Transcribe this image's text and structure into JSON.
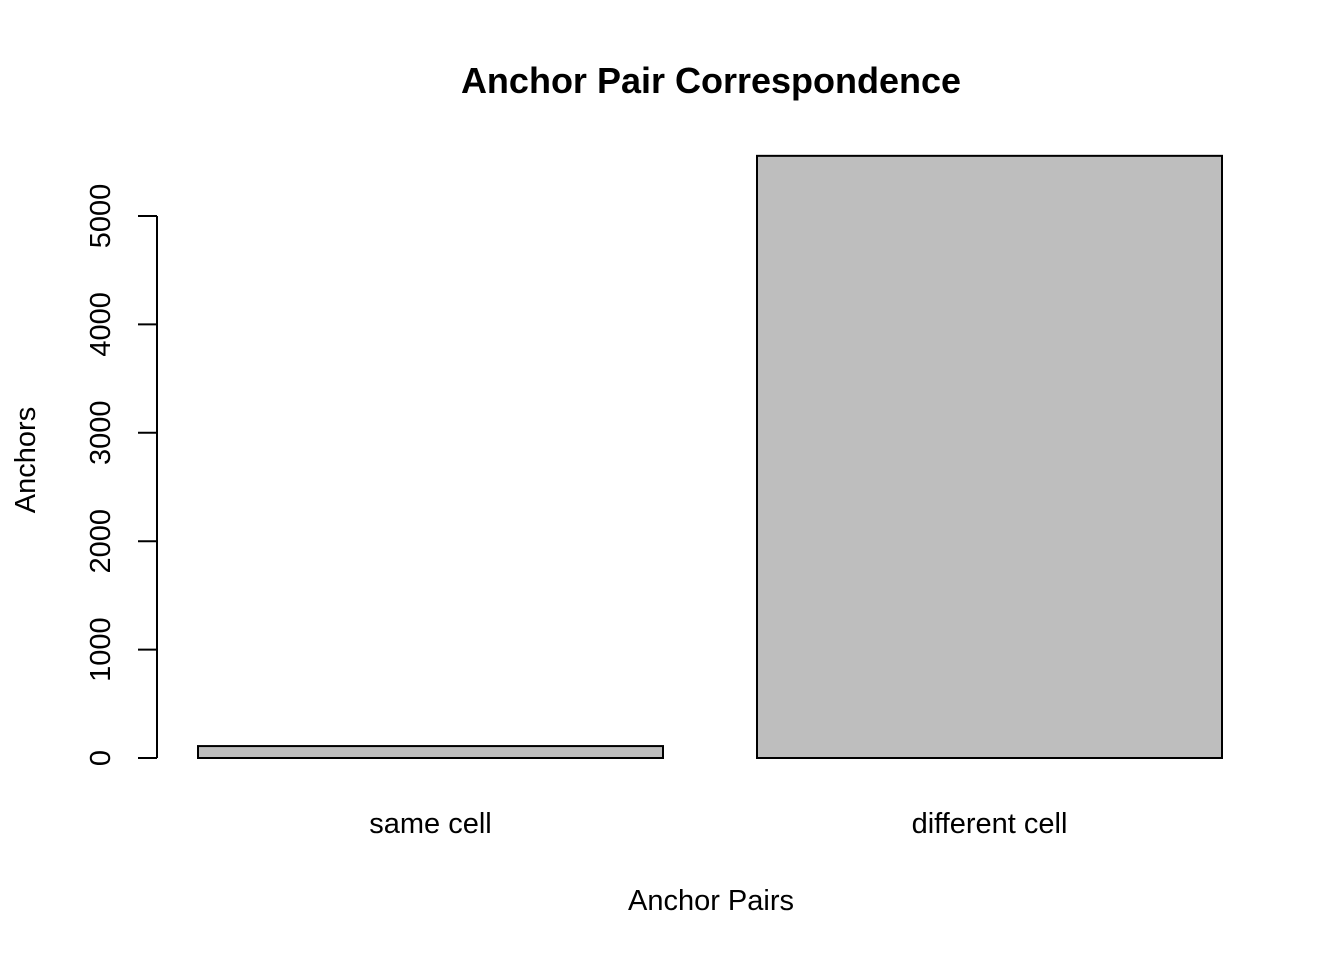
{
  "chart_data": {
    "type": "bar",
    "title": "Anchor Pair Correspondence",
    "xlabel": "Anchor Pairs",
    "ylabel": "Anchors",
    "categories": [
      "same cell",
      "different cell"
    ],
    "values": [
      110,
      5555
    ],
    "yticks": [
      0,
      1000,
      2000,
      3000,
      4000,
      5000
    ],
    "ylim": [
      0,
      5555
    ],
    "bar_color": "#bebebe",
    "grid": false,
    "legend": "none"
  }
}
